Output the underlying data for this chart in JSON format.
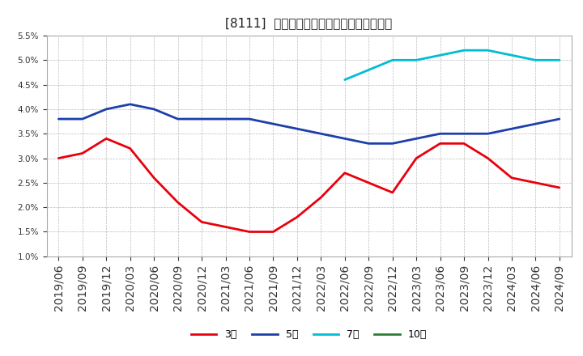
{
  "title": "[8111]  経常利益マージンの標準偏差の推移",
  "ylim": [
    0.01,
    0.055
  ],
  "yticks": [
    0.01,
    0.015,
    0.02,
    0.025,
    0.03,
    0.035,
    0.04,
    0.045,
    0.05,
    0.055
  ],
  "xtick_labels": [
    "2019/06",
    "2019/09",
    "2019/12",
    "2020/03",
    "2020/06",
    "2020/09",
    "2020/12",
    "2021/03",
    "2021/06",
    "2021/09",
    "2021/12",
    "2022/03",
    "2022/06",
    "2022/09",
    "2022/12",
    "2023/03",
    "2023/06",
    "2023/09",
    "2023/12",
    "2024/03",
    "2024/06",
    "2024/09"
  ],
  "series": {
    "3年": {
      "color": "#e8000d",
      "linewidth": 2.0,
      "values": [
        0.03,
        0.031,
        0.034,
        0.032,
        0.026,
        0.021,
        0.017,
        0.016,
        0.015,
        0.015,
        0.018,
        0.022,
        0.027,
        0.025,
        0.023,
        0.03,
        0.033,
        0.033,
        0.03,
        0.026,
        0.025,
        0.024
      ]
    },
    "5年": {
      "color": "#1c3faa",
      "linewidth": 2.0,
      "values": [
        0.038,
        0.038,
        0.04,
        0.041,
        0.04,
        0.038,
        0.038,
        0.038,
        0.038,
        0.037,
        0.036,
        0.035,
        0.034,
        0.033,
        0.033,
        0.034,
        0.035,
        0.035,
        0.035,
        0.036,
        0.037,
        0.038
      ]
    },
    "7年": {
      "color": "#00bcd4",
      "linewidth": 2.0,
      "values": [
        null,
        null,
        null,
        null,
        null,
        null,
        null,
        null,
        null,
        null,
        null,
        null,
        0.046,
        0.048,
        0.05,
        0.05,
        0.051,
        0.052,
        0.052,
        0.051,
        0.05,
        0.05
      ]
    },
    "10年": {
      "color": "#2e7d32",
      "linewidth": 2.0,
      "values": [
        null,
        null,
        null,
        null,
        null,
        null,
        null,
        null,
        null,
        null,
        null,
        null,
        null,
        null,
        null,
        null,
        null,
        null,
        null,
        null,
        null,
        null
      ]
    }
  },
  "legend_labels": [
    "3年",
    "5年",
    "7年",
    "10年"
  ],
  "legend_colors": [
    "#e8000d",
    "#1c3faa",
    "#00bcd4",
    "#2e7d32"
  ],
  "background_color": "#ffffff",
  "grid_color": "#aaaaaa",
  "title_fontsize": 11,
  "tick_fontsize": 7.5,
  "legend_fontsize": 9
}
